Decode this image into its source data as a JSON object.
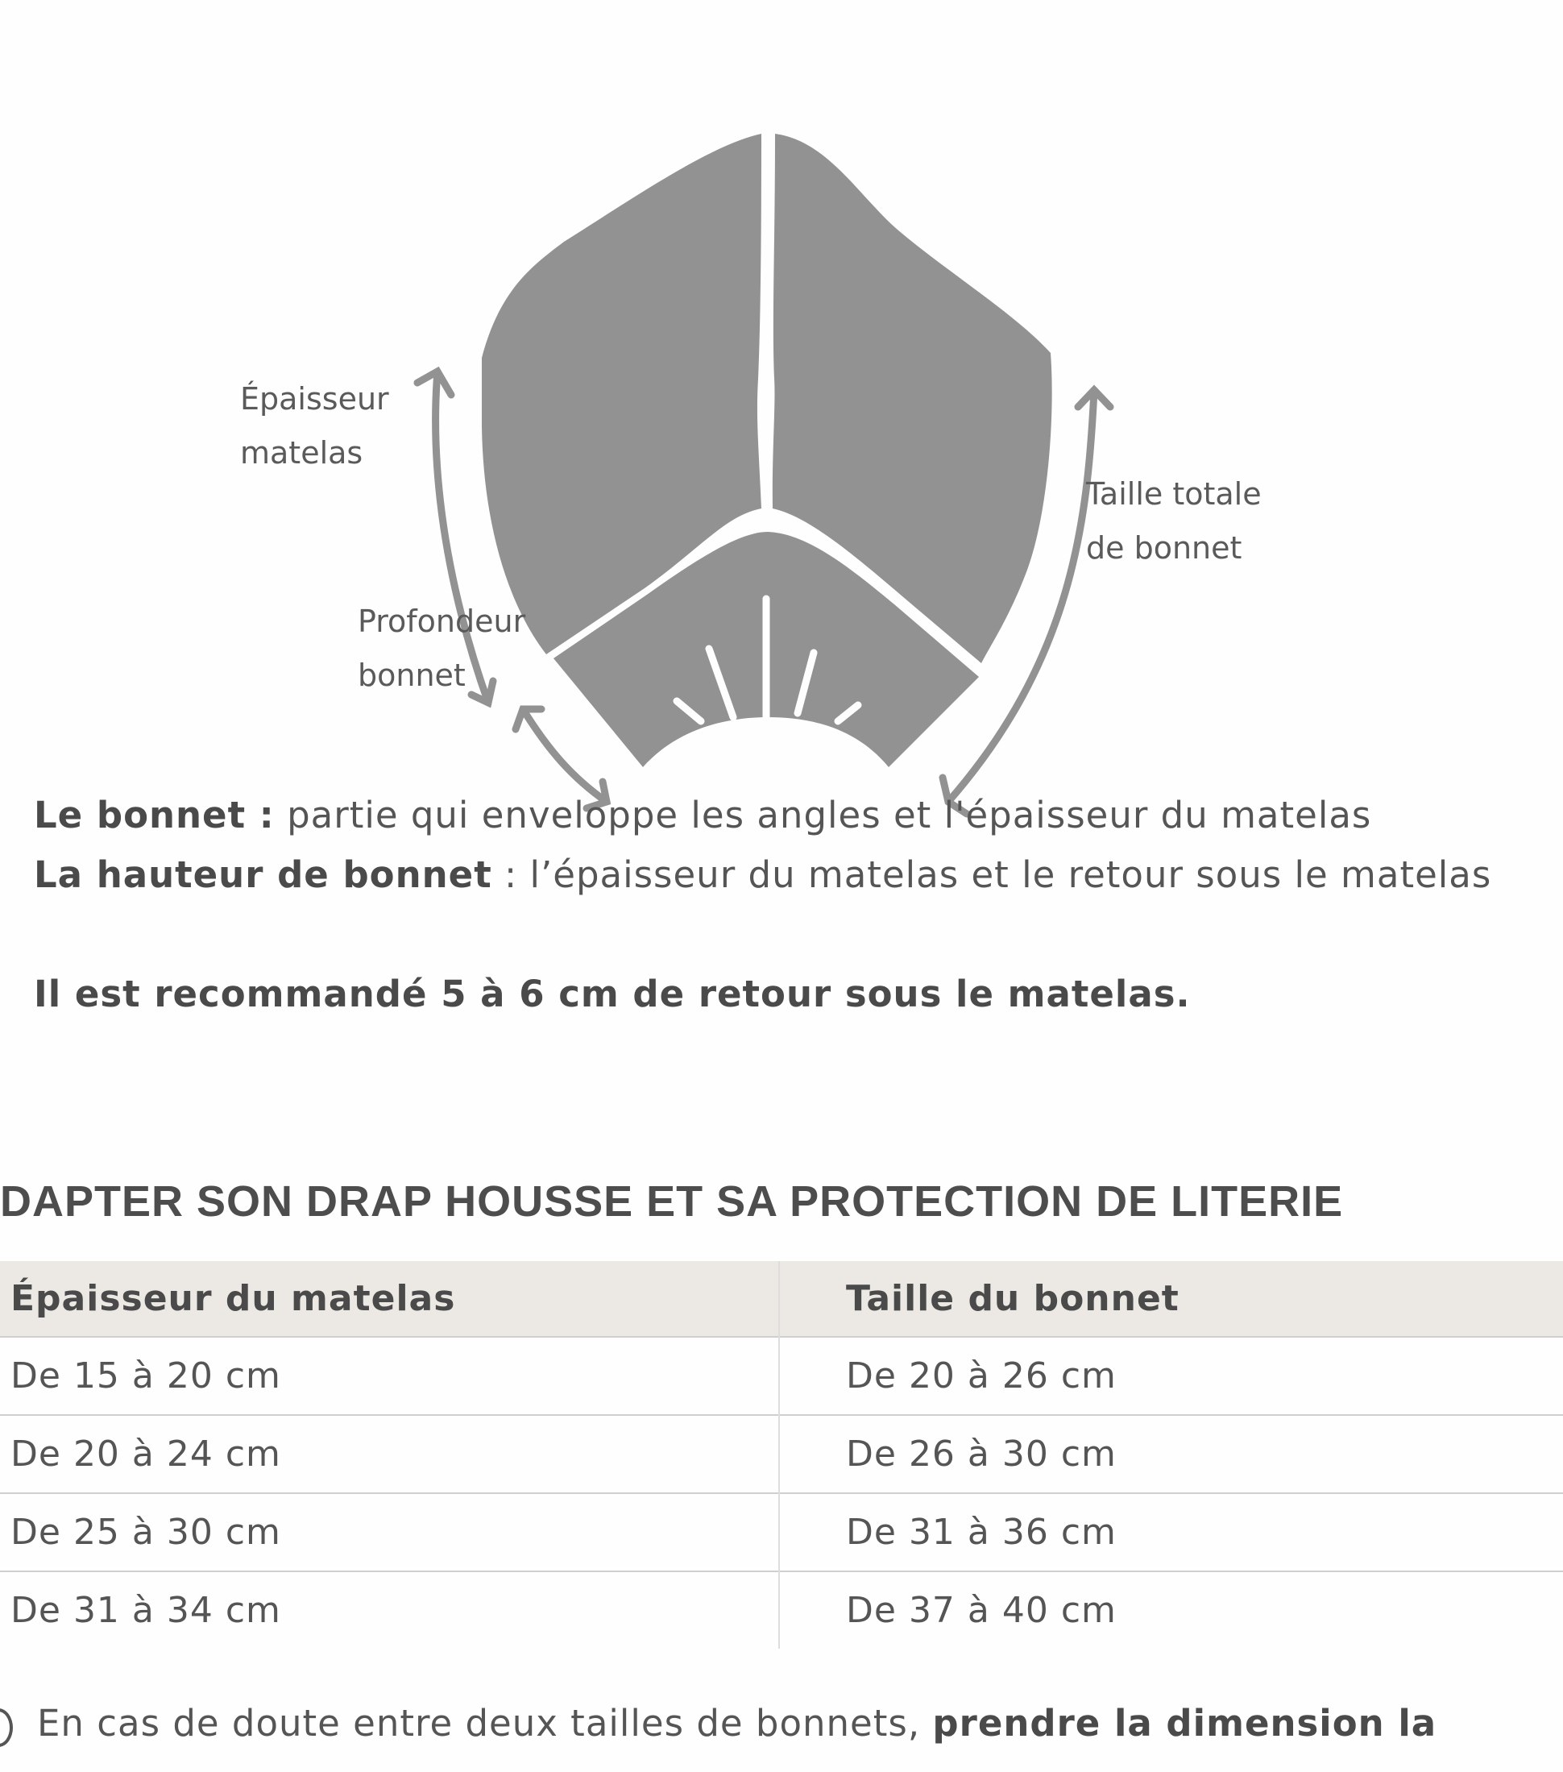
{
  "diagram": {
    "fill_color": "#929292",
    "labels": {
      "thickness_line1": "Épaisseur",
      "thickness_line2": "matelas",
      "total_line1": "Taille totale",
      "total_line2": "de bonnet",
      "depth_line1": "Profondeur",
      "depth_line2": "bonnet"
    }
  },
  "definitions": {
    "bonnet_term": "Le bonnet :",
    "bonnet_text": " partie qui enveloppe les angles et l'épaisseur du matelas",
    "height_term": "La hauteur de bonnet",
    "height_text": " : l’épaisseur du matelas et le retour sous le matelas",
    "recommendation": "Il est recommandé 5 à 6 cm de retour sous le matelas."
  },
  "section_title": "DAPTER SON DRAP HOUSSE ET SA PROTECTION DE LITERIE",
  "table": {
    "headers": [
      "Épaisseur du matelas",
      "Taille du bonnet"
    ],
    "rows": [
      [
        "De 15 à 20 cm",
        "De 20 à 26 cm"
      ],
      [
        "De 20 à 24 cm",
        "De 26 à 30 cm"
      ],
      [
        "De 25 à 30 cm",
        "De 31 à 36 cm"
      ],
      [
        "De 31 à 34 cm",
        "De 37 à 40 cm"
      ]
    ]
  },
  "note": {
    "icon": "info-icon",
    "text": "En cas de doute entre deux tailles de bonnets, ",
    "bold": "prendre la dimension la"
  }
}
